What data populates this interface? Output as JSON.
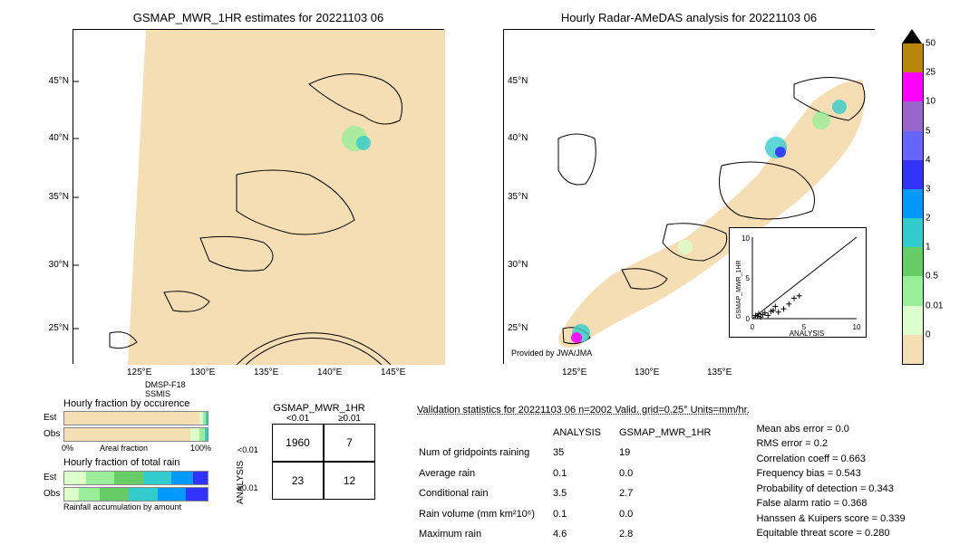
{
  "left_map": {
    "title": "GSMAP_MWR_1HR estimates for 20221103 06",
    "lats": [
      "45°N",
      "40°N",
      "35°N",
      "30°N",
      "25°N"
    ],
    "lons": [
      "125°E",
      "130°E",
      "135°E",
      "140°E",
      "145°E"
    ],
    "swath_color": "#f5deb3",
    "bg_color": "#ffffff",
    "sat1": "DMSP-F18",
    "sat2": "SSMIS"
  },
  "right_map": {
    "title": "Hourly Radar-AMeDAS analysis for 20221103 06",
    "lats": [
      "45°N",
      "40°N",
      "35°N",
      "30°N",
      "25°N"
    ],
    "lons": [
      "125°E",
      "130°E",
      "135°E"
    ],
    "provider": "Provided by JWA/JMA",
    "main_color": "#f5deb3"
  },
  "scatter_inset": {
    "xlabel": "ANALYSIS",
    "ylabel": "GSMAP_MWR_1HR",
    "ticks": [
      "0",
      "5",
      "10"
    ],
    "points": [
      [
        0.5,
        0.3
      ],
      [
        1.0,
        0.5
      ],
      [
        1.5,
        0.4
      ],
      [
        2.0,
        1.0
      ],
      [
        2.5,
        0.8
      ],
      [
        3.0,
        1.2
      ],
      [
        0.8,
        0.2
      ],
      [
        1.2,
        0.7
      ],
      [
        0.3,
        0.4
      ],
      [
        4.0,
        2.5
      ],
      [
        3.5,
        1.8
      ],
      [
        2.2,
        1.5
      ],
      [
        1.8,
        0.9
      ],
      [
        0.6,
        0.6
      ],
      [
        4.5,
        2.8
      ]
    ]
  },
  "colorbar": {
    "ticks": [
      "50",
      "25",
      "10",
      "5",
      "4",
      "3",
      "2",
      "1",
      "0.5",
      "0.01",
      "0"
    ],
    "colors": [
      "#b8860b",
      "#ff00ff",
      "#9966cc",
      "#6666ff",
      "#3333ff",
      "#0099ff",
      "#33cccc",
      "#66cc66",
      "#99ee99",
      "#ddffcc",
      "#f5deb3"
    ]
  },
  "fraction_occ": {
    "title": "Hourly fraction by occurence",
    "row1_label": "Est",
    "row2_label": "Obs",
    "axis_left": "0%",
    "axis_right": "100%",
    "axis_caption": "Areal fraction",
    "est_segs": [
      [
        "#f5deb3",
        0.94
      ],
      [
        "#ddffcc",
        0.03
      ],
      [
        "#99ee99",
        0.02
      ],
      [
        "#33cccc",
        0.01
      ]
    ],
    "obs_segs": [
      [
        "#f5deb3",
        0.88
      ],
      [
        "#ddffcc",
        0.06
      ],
      [
        "#99ee99",
        0.04
      ],
      [
        "#33cccc",
        0.02
      ]
    ]
  },
  "fraction_total": {
    "title": "Hourly fraction of total rain",
    "row1_label": "Est",
    "row2_label": "Obs",
    "caption": "Rainfall accumulation by amount",
    "est_segs": [
      [
        "#ddffcc",
        0.15
      ],
      [
        "#99ee99",
        0.2
      ],
      [
        "#66cc66",
        0.2
      ],
      [
        "#33cccc",
        0.2
      ],
      [
        "#0099ff",
        0.15
      ],
      [
        "#3333ff",
        0.1
      ]
    ],
    "obs_segs": [
      [
        "#ddffcc",
        0.1
      ],
      [
        "#99ee99",
        0.15
      ],
      [
        "#66cc66",
        0.2
      ],
      [
        "#33cccc",
        0.2
      ],
      [
        "#0099ff",
        0.2
      ],
      [
        "#3333ff",
        0.15
      ]
    ]
  },
  "contingency": {
    "col_title": "GSMAP_MWR_1HR",
    "row_title": "ANALYSIS",
    "col_h1": "<0.01",
    "col_h2": "≥0.01",
    "row_h1": "<0.01",
    "row_h2": "≥0.01",
    "c11": "1960",
    "c12": "7",
    "c21": "23",
    "c22": "12"
  },
  "validation": {
    "header": "Validation statistics for 20221103 06  n=2002 Valid. grid=0.25° Units=mm/hr.",
    "col1": "ANALYSIS",
    "col2": "GSMAP_MWR_1HR",
    "rows": [
      {
        "k": "Num of gridpoints raining",
        "a": "35",
        "b": "19"
      },
      {
        "k": "Average rain",
        "a": "0.1",
        "b": "0.0"
      },
      {
        "k": "Conditional rain",
        "a": "3.5",
        "b": "2.7"
      },
      {
        "k": "Rain volume (mm km²10⁶)",
        "a": "0.1",
        "b": "0.0"
      },
      {
        "k": "Maximum rain",
        "a": "4.6",
        "b": "2.8"
      }
    ],
    "metrics": [
      {
        "k": "Mean abs error =",
        "v": "0.0"
      },
      {
        "k": "RMS error =",
        "v": "0.2"
      },
      {
        "k": "Correlation coeff =",
        "v": "0.663"
      },
      {
        "k": "Frequency bias =",
        "v": "0.543"
      },
      {
        "k": "Probability of detection =",
        "v": "0.343"
      },
      {
        "k": "False alarm ratio =",
        "v": "0.368"
      },
      {
        "k": "Hanssen & Kuipers score =",
        "v": "0.339"
      },
      {
        "k": "Equitable threat score =",
        "v": "0.280"
      }
    ]
  }
}
